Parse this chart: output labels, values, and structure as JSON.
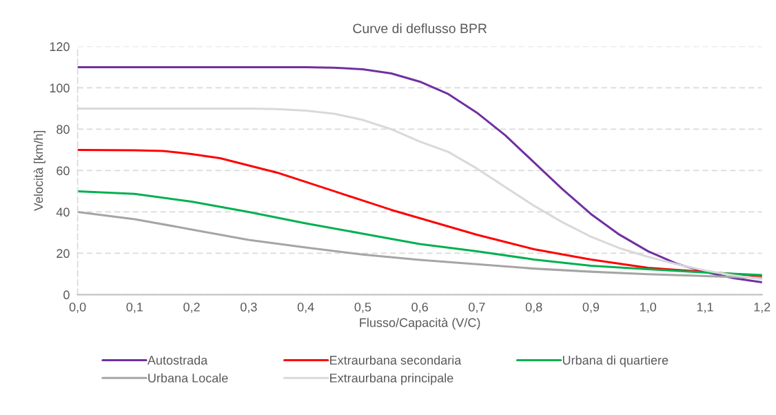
{
  "chart_data": {
    "type": "line",
    "title": "Curve di deflusso BPR",
    "xlabel": "Flusso/Capacità (V/C)",
    "ylabel": "Velocità [km/h]",
    "xlim": [
      0,
      1.2
    ],
    "ylim": [
      0,
      120
    ],
    "xticks": [
      {
        "value": 0,
        "label": "0,0"
      },
      {
        "value": 0.1,
        "label": "0,1"
      },
      {
        "value": 0.2,
        "label": "0,2"
      },
      {
        "value": 0.3,
        "label": "0,3"
      },
      {
        "value": 0.4,
        "label": "0,4"
      },
      {
        "value": 0.5,
        "label": "0,5"
      },
      {
        "value": 0.6,
        "label": "0,6"
      },
      {
        "value": 0.7,
        "label": "0,7"
      },
      {
        "value": 0.8,
        "label": "0,8"
      },
      {
        "value": 0.9,
        "label": "0,9"
      },
      {
        "value": 1.0,
        "label": "1,0"
      },
      {
        "value": 1.1,
        "label": "1,1"
      },
      {
        "value": 1.2,
        "label": "1,2"
      }
    ],
    "yticks": [
      0,
      20,
      40,
      60,
      80,
      100,
      120
    ],
    "grid": "y",
    "legend": "bottom",
    "marker": "none",
    "line_style": "solid",
    "series": [
      {
        "name": "Autostrada",
        "color": "#7030a0",
        "x": [
          0,
          0.1,
          0.2,
          0.3,
          0.4,
          0.45,
          0.5,
          0.55,
          0.6,
          0.65,
          0.7,
          0.75,
          0.8,
          0.85,
          0.9,
          0.95,
          1.0,
          1.05,
          1.1,
          1.15,
          1.2
        ],
        "values": [
          110,
          110,
          110,
          110,
          110,
          109.7,
          109,
          107,
          103,
          97,
          88,
          77,
          64,
          51,
          39,
          29,
          21,
          15,
          11,
          8,
          6
        ]
      },
      {
        "name": "Extraurbana secondaria",
        "color": "#ff0000",
        "x": [
          0,
          0.1,
          0.15,
          0.2,
          0.25,
          0.3,
          0.35,
          0.4,
          0.45,
          0.5,
          0.55,
          0.6,
          0.65,
          0.7,
          0.75,
          0.8,
          0.85,
          0.9,
          0.95,
          1.0,
          1.05,
          1.1,
          1.2
        ],
        "values": [
          70,
          69.8,
          69.5,
          68,
          66,
          62.5,
          59,
          54.5,
          50,
          45.5,
          41,
          37,
          33,
          29,
          25.5,
          22,
          19.5,
          17,
          15,
          13,
          12,
          11,
          9
        ]
      },
      {
        "name": "Urbana di quartiere",
        "color": "#00b050",
        "x": [
          0,
          0.1,
          0.2,
          0.3,
          0.4,
          0.5,
          0.6,
          0.7,
          0.8,
          0.9,
          1.0,
          1.1,
          1.2
        ],
        "values": [
          50,
          48.7,
          45,
          40,
          34.5,
          29.5,
          24.5,
          21,
          17,
          14,
          12.3,
          10.7,
          9.5
        ]
      },
      {
        "name": "Urbana Locale",
        "color": "#a5a5a5",
        "x": [
          0,
          0.1,
          0.2,
          0.3,
          0.4,
          0.5,
          0.6,
          0.7,
          0.8,
          0.9,
          1.0,
          1.1,
          1.2
        ],
        "values": [
          40,
          36.5,
          31.5,
          26.5,
          22.8,
          19.4,
          16.8,
          14.7,
          12.6,
          11.1,
          9.9,
          9,
          8.1
        ]
      },
      {
        "name": "Extraurbana principale",
        "color": "#d9d9d9",
        "x": [
          0,
          0.1,
          0.2,
          0.3,
          0.35,
          0.4,
          0.45,
          0.5,
          0.55,
          0.6,
          0.65,
          0.7,
          0.75,
          0.8,
          0.85,
          0.9,
          0.95,
          1.0,
          1.05,
          1.1,
          1.15,
          1.2
        ],
        "values": [
          90,
          90,
          90,
          90,
          89.7,
          89,
          87.5,
          84.5,
          80,
          74,
          69,
          61,
          52,
          43,
          35,
          28,
          22.5,
          18.3,
          14.7,
          11.7,
          9.3,
          7.5
        ]
      }
    ]
  }
}
